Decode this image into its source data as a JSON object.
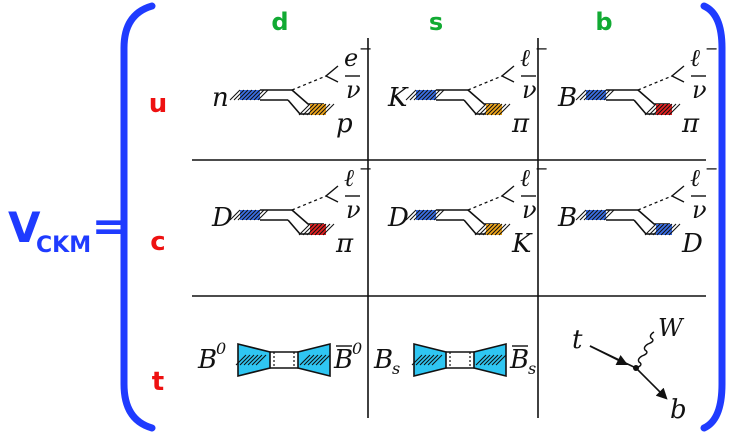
{
  "colors": {
    "blue": "#1f3bff",
    "green": "#11aa33",
    "red": "#ee1111",
    "quark_blue": "#3a6fe6",
    "quark_orange": "#f2a81b",
    "quark_red": "#e52222",
    "quark_cyan": "#2fc6f2",
    "ink": "#111111"
  },
  "matrix": {
    "symbol": "V",
    "subscript": "CKM",
    "equals": "=",
    "columns": [
      "d",
      "s",
      "b"
    ],
    "rows": [
      "u",
      "c",
      "t"
    ]
  },
  "cells": [
    {
      "row": "u",
      "col": "d",
      "type": "decay",
      "parent": "n",
      "lepton": "e",
      "lepton_sup": "−",
      "neutrino": "ν",
      "daughter": "p",
      "end_color": "orange"
    },
    {
      "row": "u",
      "col": "s",
      "type": "decay",
      "parent": "K",
      "lepton": "ℓ",
      "lepton_sup": "−",
      "neutrino": "ν",
      "daughter": "π",
      "end_color": "orange"
    },
    {
      "row": "u",
      "col": "b",
      "type": "decay",
      "parent": "B",
      "lepton": "ℓ",
      "lepton_sup": "−",
      "neutrino": "ν",
      "daughter": "π",
      "end_color": "red"
    },
    {
      "row": "c",
      "col": "d",
      "type": "decay",
      "parent": "D",
      "lepton": "ℓ",
      "lepton_sup": "−",
      "neutrino": "ν",
      "daughter": "π",
      "end_color": "red"
    },
    {
      "row": "c",
      "col": "s",
      "type": "decay",
      "parent": "D",
      "lepton": "ℓ",
      "lepton_sup": "−",
      "neutrino": "ν",
      "daughter": "K",
      "end_color": "orange"
    },
    {
      "row": "c",
      "col": "b",
      "type": "decay",
      "parent": "B",
      "lepton": "ℓ",
      "lepton_sup": "−",
      "neutrino": "ν",
      "daughter": "D",
      "end_color": "blue"
    },
    {
      "row": "t",
      "col": "d",
      "type": "mixing",
      "left": "B",
      "left_sup": "0",
      "right": "B",
      "right_sup": "0",
      "sub": ""
    },
    {
      "row": "t",
      "col": "s",
      "type": "mixing",
      "left": "B",
      "left_sub": "s",
      "right": "B",
      "right_sub": "s"
    },
    {
      "row": "t",
      "col": "b",
      "type": "vertex",
      "incoming": "t",
      "boson": "W",
      "outgoing": "b"
    }
  ]
}
